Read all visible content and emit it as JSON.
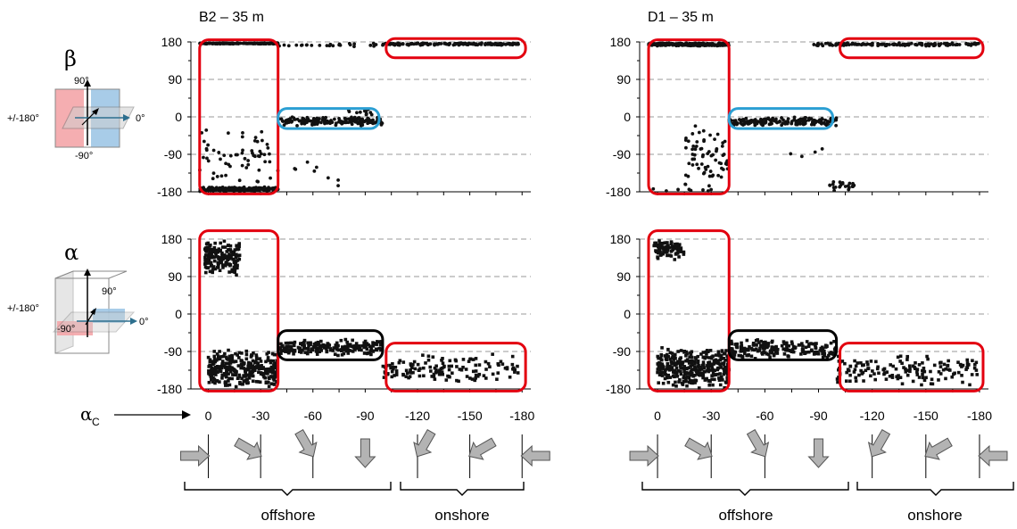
{
  "colors": {
    "dot": "#111111",
    "red_box": "#e3000f",
    "blue_box": "#2b9fd3",
    "black_box": "#000000",
    "grid": "#9a9a9a",
    "arrow_fill": "#b3b3b3",
    "plane_red": "#f4a5a8",
    "plane_blue": "#9ec7e6"
  },
  "labels": {
    "beta": "β",
    "alpha": "α",
    "alpha_c": "α",
    "alpha_c_sub": "C",
    "deg_90": "90°",
    "deg_neg90": "-90°",
    "deg_0": "0°",
    "deg_pm180": "+/-180°",
    "offshore": "offshore",
    "onshore": "onshore"
  },
  "chart_data": [
    {
      "panel": "B2 beta",
      "type": "scatter",
      "title": "B2 – 35 m",
      "ylabel": "β",
      "ylim": [
        -180,
        180
      ],
      "yticks": [
        180,
        90,
        0,
        -90,
        -180
      ],
      "xlim": [
        10,
        -185
      ],
      "grid": "dashed horizontal",
      "clusters": [
        {
          "x": [
            5,
            -40
          ],
          "y": [
            175,
            178
          ],
          "n": 230
        },
        {
          "x": [
            -40,
            -100
          ],
          "y": [
            168,
            178
          ],
          "n": 25
        },
        {
          "x": [
            -100,
            -180
          ],
          "y": [
            172,
            178
          ],
          "n": 160
        },
        {
          "x": [
            5,
            -40
          ],
          "y": [
            -180,
            -168
          ],
          "n": 230
        },
        {
          "x": [
            5,
            -40
          ],
          "y": [
            -170,
            -20
          ],
          "n": 60
        },
        {
          "x": [
            -40,
            -100
          ],
          "y": [
            -22,
            0
          ],
          "n": 170
        },
        {
          "x": [
            -80,
            -95
          ],
          "y": [
            0,
            20
          ],
          "n": 12
        },
        {
          "x": [
            -40,
            -100
          ],
          "y": [
            -180,
            -80
          ],
          "n": 8
        }
      ],
      "boxes": [
        {
          "color": "red",
          "x": [
            5,
            -40
          ],
          "y": [
            -185,
            185
          ]
        },
        {
          "color": "blue",
          "x": [
            -40,
            -98
          ],
          "y": [
            -28,
            20
          ]
        },
        {
          "color": "red",
          "x": [
            -102,
            -182
          ],
          "y": [
            142,
            188
          ]
        }
      ]
    },
    {
      "panel": "D1 beta",
      "type": "scatter",
      "title": "D1 – 35 m",
      "ylabel": "β",
      "ylim": [
        -180,
        180
      ],
      "yticks": [
        180,
        90,
        0,
        -90,
        -180
      ],
      "xlim": [
        10,
        -185
      ],
      "grid": "dashed horizontal",
      "clusters": [
        {
          "x": [
            5,
            -40
          ],
          "y": [
            170,
            178
          ],
          "n": 230
        },
        {
          "x": [
            -85,
            -180
          ],
          "y": [
            170,
            178
          ],
          "n": 140
        },
        {
          "x": [
            5,
            -40
          ],
          "y": [
            -180,
            -170
          ],
          "n": 8
        },
        {
          "x": [
            -40,
            -100
          ],
          "y": [
            -22,
            0
          ],
          "n": 170
        },
        {
          "x": [
            -15,
            -40
          ],
          "y": [
            -180,
            -10
          ],
          "n": 70
        },
        {
          "x": [
            -95,
            -110
          ],
          "y": [
            -180,
            -150
          ],
          "n": 25
        },
        {
          "x": [
            -60,
            -100
          ],
          "y": [
            -100,
            -70
          ],
          "n": 4
        }
      ],
      "boxes": [
        {
          "color": "red",
          "x": [
            5,
            -40
          ],
          "y": [
            -185,
            185
          ]
        },
        {
          "color": "blue",
          "x": [
            -40,
            -98
          ],
          "y": [
            -28,
            20
          ]
        },
        {
          "color": "red",
          "x": [
            -102,
            -182
          ],
          "y": [
            142,
            188
          ]
        }
      ]
    },
    {
      "panel": "B2 alpha",
      "type": "scatter",
      "title": "",
      "ylabel": "α",
      "ylim": [
        -180,
        180
      ],
      "yticks": [
        180,
        90,
        0,
        -90,
        -180
      ],
      "xlim": [
        10,
        -185
      ],
      "xlabel": "αC",
      "xticks": [
        0,
        -30,
        -60,
        -90,
        -120,
        -150,
        -180
      ],
      "grid": "dashed horizontal",
      "clusters": [
        {
          "x": [
            2,
            -18
          ],
          "y": [
            90,
            180
          ],
          "n": 170
        },
        {
          "x": [
            0,
            -40
          ],
          "y": [
            -180,
            -85
          ],
          "n": 320
        },
        {
          "x": [
            -40,
            -100
          ],
          "y": [
            -100,
            -60
          ],
          "n": 200
        },
        {
          "x": [
            -100,
            -178
          ],
          "y": [
            -170,
            -95
          ],
          "n": 140
        }
      ],
      "boxes": [
        {
          "color": "red",
          "x": [
            5,
            -40
          ],
          "y": [
            -185,
            200
          ]
        },
        {
          "color": "black",
          "x": [
            -40,
            -100
          ],
          "y": [
            -110,
            -40
          ]
        },
        {
          "color": "red",
          "x": [
            -102,
            -182
          ],
          "y": [
            -185,
            -70
          ]
        }
      ]
    },
    {
      "panel": "D1 alpha",
      "type": "scatter",
      "title": "",
      "ylabel": "α",
      "ylim": [
        -180,
        180
      ],
      "yticks": [
        180,
        90,
        0,
        -90,
        -180
      ],
      "xlim": [
        10,
        -185
      ],
      "xlabel": "αC",
      "xticks": [
        0,
        -30,
        -60,
        -90,
        -120,
        -150,
        -180
      ],
      "grid": "dashed horizontal",
      "clusters": [
        {
          "x": [
            2,
            -15
          ],
          "y": [
            130,
            180
          ],
          "n": 90
        },
        {
          "x": [
            0,
            -40
          ],
          "y": [
            -180,
            -80
          ],
          "n": 340
        },
        {
          "x": [
            -40,
            -100
          ],
          "y": [
            -110,
            -60
          ],
          "n": 200
        },
        {
          "x": [
            -100,
            -180
          ],
          "y": [
            -175,
            -95
          ],
          "n": 150
        }
      ],
      "boxes": [
        {
          "color": "red",
          "x": [
            5,
            -40
          ],
          "y": [
            -185,
            200
          ]
        },
        {
          "color": "black",
          "x": [
            -40,
            -100
          ],
          "y": [
            -110,
            -40
          ]
        },
        {
          "color": "red",
          "x": [
            -102,
            -182
          ],
          "y": [
            -185,
            -70
          ]
        }
      ]
    }
  ]
}
